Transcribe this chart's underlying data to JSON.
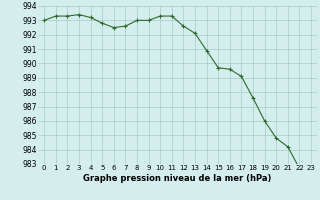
{
  "x": [
    0,
    1,
    2,
    3,
    4,
    5,
    6,
    7,
    8,
    9,
    10,
    11,
    12,
    13,
    14,
    15,
    16,
    17,
    18,
    19,
    20,
    21,
    22,
    23
  ],
  "y": [
    993.0,
    993.3,
    993.3,
    993.4,
    993.2,
    992.8,
    992.5,
    992.6,
    993.0,
    993.0,
    993.3,
    993.3,
    992.6,
    992.1,
    990.9,
    989.7,
    989.6,
    989.1,
    987.6,
    986.0,
    984.8,
    984.2,
    982.7,
    982.7
  ],
  "line_color": "#2d6a2d",
  "marker": "+",
  "marker_color": "#2d6a2d",
  "marker_size": 3,
  "line_width": 0.8,
  "bg_plot": "#d4eeee",
  "bg_fig": "#d4eeee",
  "grid_color": "#aacaca",
  "xlabel": "Graphe pression niveau de la mer (hPa)",
  "xlabel_fontsize": 6.0,
  "xlabel_bold": true,
  "ytick_fontsize": 5.5,
  "xtick_fontsize": 5.0,
  "ylim": [
    983,
    994
  ],
  "xlim": [
    -0.5,
    23.5
  ],
  "yticks": [
    983,
    984,
    985,
    986,
    987,
    988,
    989,
    990,
    991,
    992,
    993,
    994
  ],
  "xticks": [
    0,
    1,
    2,
    3,
    4,
    5,
    6,
    7,
    8,
    9,
    10,
    11,
    12,
    13,
    14,
    15,
    16,
    17,
    18,
    19,
    20,
    21,
    22,
    23
  ]
}
